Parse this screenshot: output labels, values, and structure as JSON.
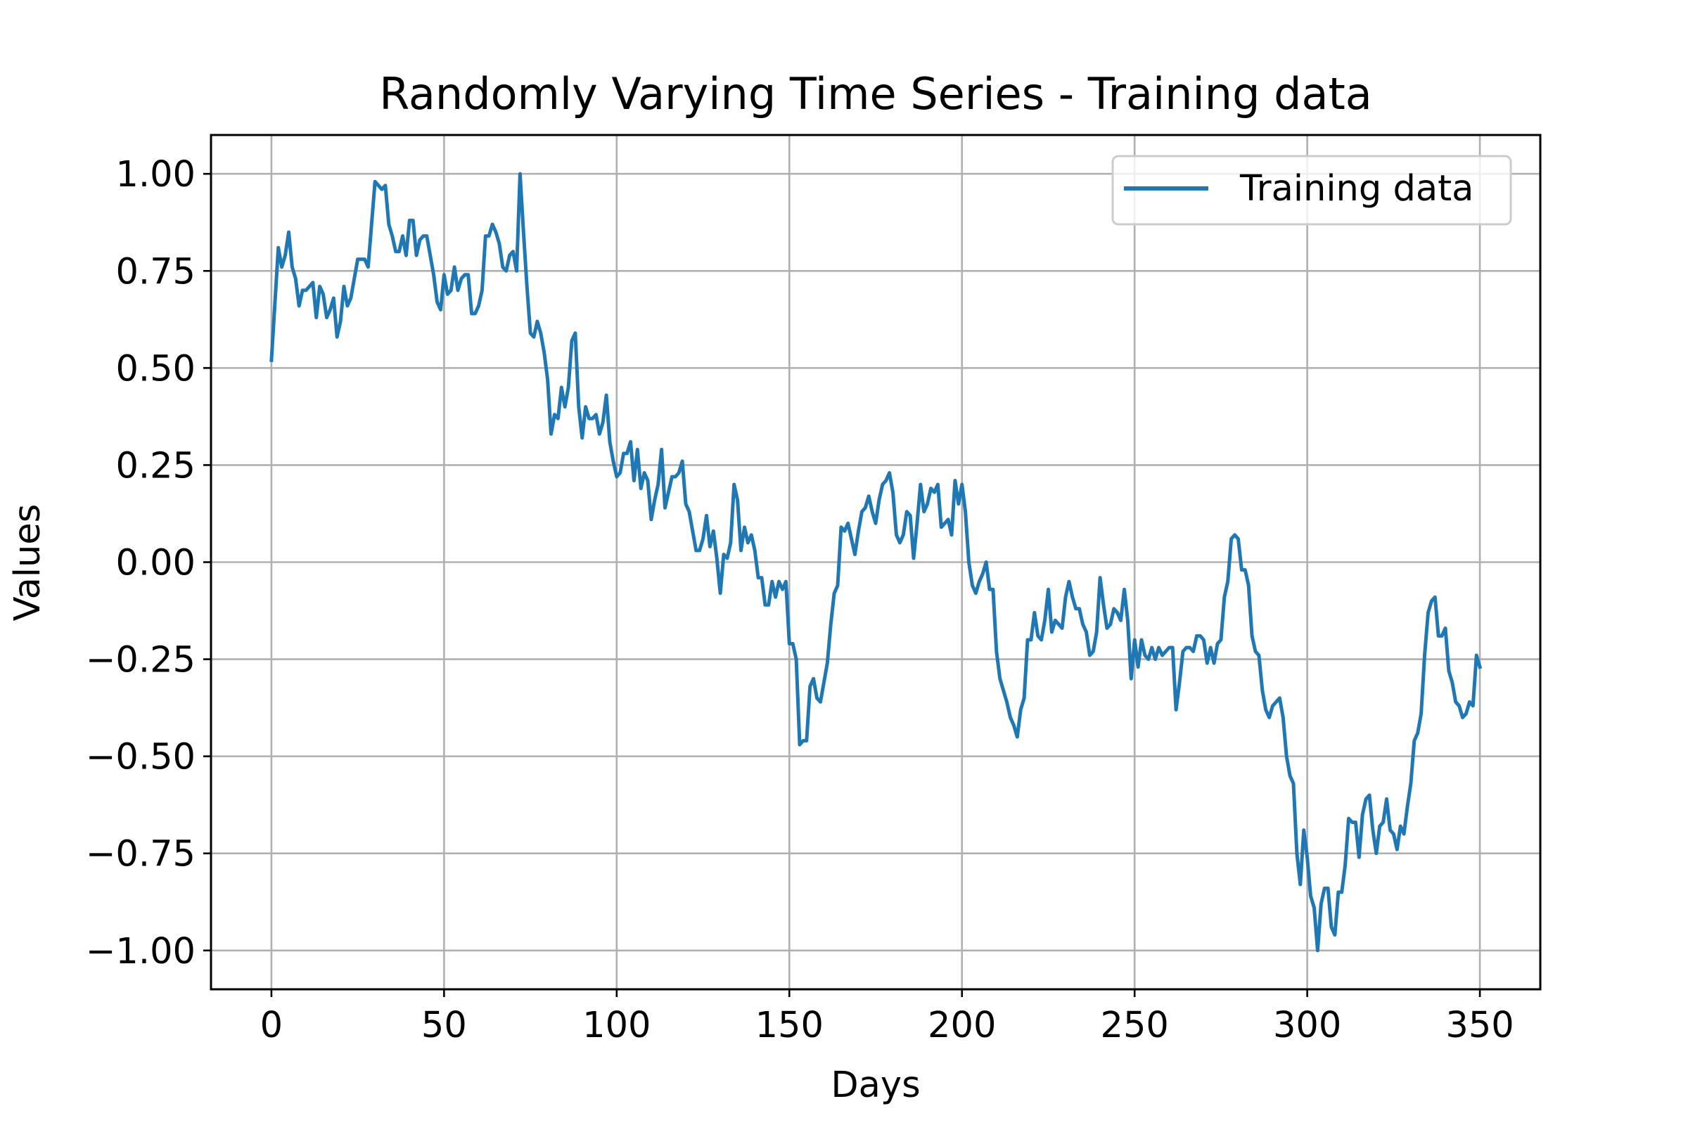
{
  "chart_data": {
    "type": "line",
    "title": "Randomly Varying Time Series - Training data",
    "xlabel": "Days",
    "ylabel": "Values",
    "xlim": [
      -17.5,
      367.5
    ],
    "ylim": [
      -1.1,
      1.1
    ],
    "xticks": [
      0,
      50,
      100,
      150,
      200,
      250,
      300,
      350
    ],
    "xtick_labels": [
      "0",
      "50",
      "100",
      "150",
      "200",
      "250",
      "300",
      "350"
    ],
    "yticks": [
      1.0,
      0.75,
      0.5,
      0.25,
      0.0,
      -0.25,
      -0.5,
      -0.75,
      -1.0
    ],
    "ytick_labels": [
      "1.00",
      "0.75",
      "0.50",
      "0.25",
      "0.00",
      "−0.25",
      "−0.50",
      "−0.75",
      "−1.00"
    ],
    "grid": true,
    "legend_position": "top-right",
    "colors": {
      "series": "#1f77b4",
      "grid": "#b0b0b0",
      "frame": "#000000"
    },
    "series": [
      {
        "name": "Training data",
        "x": [
          0,
          2,
          3,
          4,
          5,
          6,
          7,
          8,
          9,
          10,
          12,
          13,
          14,
          15,
          16,
          17,
          18,
          19,
          20,
          21,
          22,
          23,
          24,
          25,
          26,
          27,
          28,
          29,
          30,
          31,
          32,
          33,
          34,
          35,
          36,
          37,
          38,
          39,
          40,
          41,
          42,
          43,
          44,
          45,
          46,
          47,
          48,
          49,
          50,
          51,
          52,
          53,
          54,
          55,
          56,
          57,
          58,
          59,
          60,
          61,
          62,
          63,
          64,
          65,
          66,
          67,
          68,
          69,
          70,
          71,
          72,
          73,
          74,
          75,
          76,
          77,
          78,
          79,
          80,
          81,
          82,
          83,
          84,
          85,
          86,
          87,
          88,
          89,
          90,
          91,
          92,
          93,
          94,
          95,
          96,
          97,
          98,
          99,
          100,
          101,
          102,
          103,
          104,
          105,
          106,
          107,
          108,
          109,
          110,
          111,
          112,
          113,
          114,
          115,
          116,
          117,
          118,
          119,
          120,
          121,
          122,
          123,
          124,
          125,
          126,
          127,
          128,
          129,
          130,
          131,
          132,
          133,
          134,
          135,
          136,
          137,
          138,
          139,
          140,
          141,
          142,
          143,
          144,
          145,
          146,
          147,
          148,
          149,
          150,
          151,
          152,
          153,
          154,
          155,
          156,
          157,
          158,
          159,
          160,
          161,
          162,
          163,
          164,
          165,
          166,
          167,
          168,
          169,
          170,
          171,
          172,
          173,
          174,
          175,
          176,
          177,
          178,
          179,
          180,
          181,
          182,
          183,
          184,
          185,
          186,
          187,
          188,
          189,
          190,
          191,
          192,
          193,
          194,
          195,
          196,
          197,
          198,
          199,
          200,
          201,
          202,
          203,
          204,
          205,
          206,
          207,
          208,
          209,
          210,
          211,
          212,
          213,
          214,
          215,
          216,
          217,
          218,
          219,
          220,
          221,
          222,
          223,
          224,
          225,
          226,
          227,
          228,
          229,
          230,
          231,
          232,
          233,
          234,
          235,
          236,
          237,
          238,
          239,
          240,
          241,
          242,
          243,
          244,
          245,
          246,
          247,
          248,
          249,
          250,
          251,
          252,
          253,
          254,
          255,
          256,
          257,
          258,
          259,
          260,
          261,
          262,
          263,
          264,
          265,
          266,
          267,
          268,
          269,
          270,
          271,
          272,
          273,
          274,
          275,
          276,
          277,
          278,
          279,
          280,
          281,
          282,
          283,
          284,
          285,
          286,
          287,
          288,
          289,
          290,
          291,
          292,
          293,
          294,
          295,
          296,
          297,
          298,
          299,
          300,
          301,
          302,
          303,
          304,
          305,
          306,
          307,
          308,
          309,
          310,
          311,
          312,
          313,
          314,
          315,
          316,
          317,
          318,
          319,
          320,
          321,
          322,
          323,
          324,
          325,
          326,
          327,
          328,
          329,
          330,
          331,
          332,
          333,
          334,
          335,
          336,
          337,
          338,
          339,
          340,
          341,
          342,
          343,
          344,
          345,
          346,
          347,
          348,
          349,
          350
        ],
        "values": [
          0.52,
          0.81,
          0.76,
          0.79,
          0.85,
          0.76,
          0.73,
          0.66,
          0.7,
          0.7,
          0.72,
          0.63,
          0.71,
          0.69,
          0.63,
          0.65,
          0.68,
          0.58,
          0.62,
          0.71,
          0.66,
          0.68,
          0.73,
          0.78,
          0.78,
          0.78,
          0.76,
          0.87,
          0.98,
          0.97,
          0.96,
          0.97,
          0.87,
          0.84,
          0.8,
          0.8,
          0.84,
          0.79,
          0.88,
          0.88,
          0.79,
          0.83,
          0.84,
          0.84,
          0.79,
          0.74,
          0.67,
          0.65,
          0.74,
          0.69,
          0.7,
          0.76,
          0.7,
          0.73,
          0.74,
          0.74,
          0.64,
          0.64,
          0.66,
          0.7,
          0.84,
          0.84,
          0.87,
          0.85,
          0.82,
          0.76,
          0.75,
          0.79,
          0.8,
          0.75,
          1.0,
          0.85,
          0.71,
          0.59,
          0.58,
          0.62,
          0.59,
          0.54,
          0.47,
          0.33,
          0.38,
          0.37,
          0.45,
          0.4,
          0.45,
          0.57,
          0.59,
          0.4,
          0.32,
          0.4,
          0.37,
          0.37,
          0.38,
          0.33,
          0.36,
          0.43,
          0.31,
          0.26,
          0.22,
          0.23,
          0.28,
          0.28,
          0.31,
          0.21,
          0.29,
          0.19,
          0.23,
          0.21,
          0.11,
          0.16,
          0.2,
          0.29,
          0.14,
          0.18,
          0.22,
          0.22,
          0.23,
          0.26,
          0.15,
          0.13,
          0.08,
          0.03,
          0.03,
          0.06,
          0.12,
          0.04,
          0.08,
          0.01,
          -0.08,
          0.02,
          0.01,
          0.05,
          0.2,
          0.16,
          0.03,
          0.09,
          0.05,
          0.07,
          0.03,
          -0.04,
          -0.04,
          -0.11,
          -0.11,
          -0.05,
          -0.09,
          -0.05,
          -0.07,
          -0.05,
          -0.21,
          -0.21,
          -0.25,
          -0.47,
          -0.46,
          -0.46,
          -0.32,
          -0.3,
          -0.35,
          -0.36,
          -0.31,
          -0.26,
          -0.16,
          -0.08,
          -0.06,
          0.09,
          0.08,
          0.1,
          0.06,
          0.02,
          0.08,
          0.13,
          0.14,
          0.17,
          0.13,
          0.1,
          0.16,
          0.2,
          0.21,
          0.23,
          0.18,
          0.07,
          0.05,
          0.07,
          0.13,
          0.12,
          0.01,
          0.1,
          0.2,
          0.13,
          0.15,
          0.19,
          0.18,
          0.2,
          0.09,
          0.1,
          0.11,
          0.07,
          0.21,
          0.15,
          0.2,
          0.13,
          0.0,
          -0.06,
          -0.08,
          -0.05,
          -0.03,
          0.0,
          -0.07,
          -0.07,
          -0.23,
          -0.3,
          -0.33,
          -0.36,
          -0.4,
          -0.42,
          -0.45,
          -0.38,
          -0.35,
          -0.2,
          -0.2,
          -0.13,
          -0.19,
          -0.2,
          -0.15,
          -0.07,
          -0.18,
          -0.15,
          -0.16,
          -0.17,
          -0.09,
          -0.05,
          -0.09,
          -0.12,
          -0.12,
          -0.16,
          -0.18,
          -0.24,
          -0.23,
          -0.18,
          -0.04,
          -0.11,
          -0.17,
          -0.16,
          -0.12,
          -0.13,
          -0.15,
          -0.07,
          -0.15,
          -0.3,
          -0.2,
          -0.27,
          -0.2,
          -0.24,
          -0.25,
          -0.22,
          -0.25,
          -0.22,
          -0.24,
          -0.23,
          -0.22,
          -0.22,
          -0.38,
          -0.31,
          -0.23,
          -0.22,
          -0.22,
          -0.23,
          -0.19,
          -0.19,
          -0.2,
          -0.26,
          -0.22,
          -0.26,
          -0.21,
          -0.2,
          -0.09,
          -0.05,
          0.06,
          0.07,
          0.06,
          -0.02,
          -0.02,
          -0.06,
          -0.19,
          -0.23,
          -0.24,
          -0.33,
          -0.38,
          -0.4,
          -0.37,
          -0.36,
          -0.35,
          -0.4,
          -0.5,
          -0.55,
          -0.57,
          -0.75,
          -0.83,
          -0.69,
          -0.76,
          -0.86,
          -0.89,
          -1.0,
          -0.88,
          -0.84,
          -0.84,
          -0.94,
          -0.96,
          -0.85,
          -0.85,
          -0.78,
          -0.66,
          -0.67,
          -0.67,
          -0.76,
          -0.65,
          -0.61,
          -0.6,
          -0.69,
          -0.75,
          -0.68,
          -0.67,
          -0.61,
          -0.69,
          -0.7,
          -0.74,
          -0.68,
          -0.7,
          -0.63,
          -0.57,
          -0.46,
          -0.44,
          -0.39,
          -0.24,
          -0.13,
          -0.1,
          -0.09,
          -0.19,
          -0.19,
          -0.17,
          -0.28,
          -0.31,
          -0.36,
          -0.37,
          -0.4,
          -0.39,
          -0.36,
          -0.37,
          -0.24,
          -0.27
        ]
      }
    ]
  }
}
